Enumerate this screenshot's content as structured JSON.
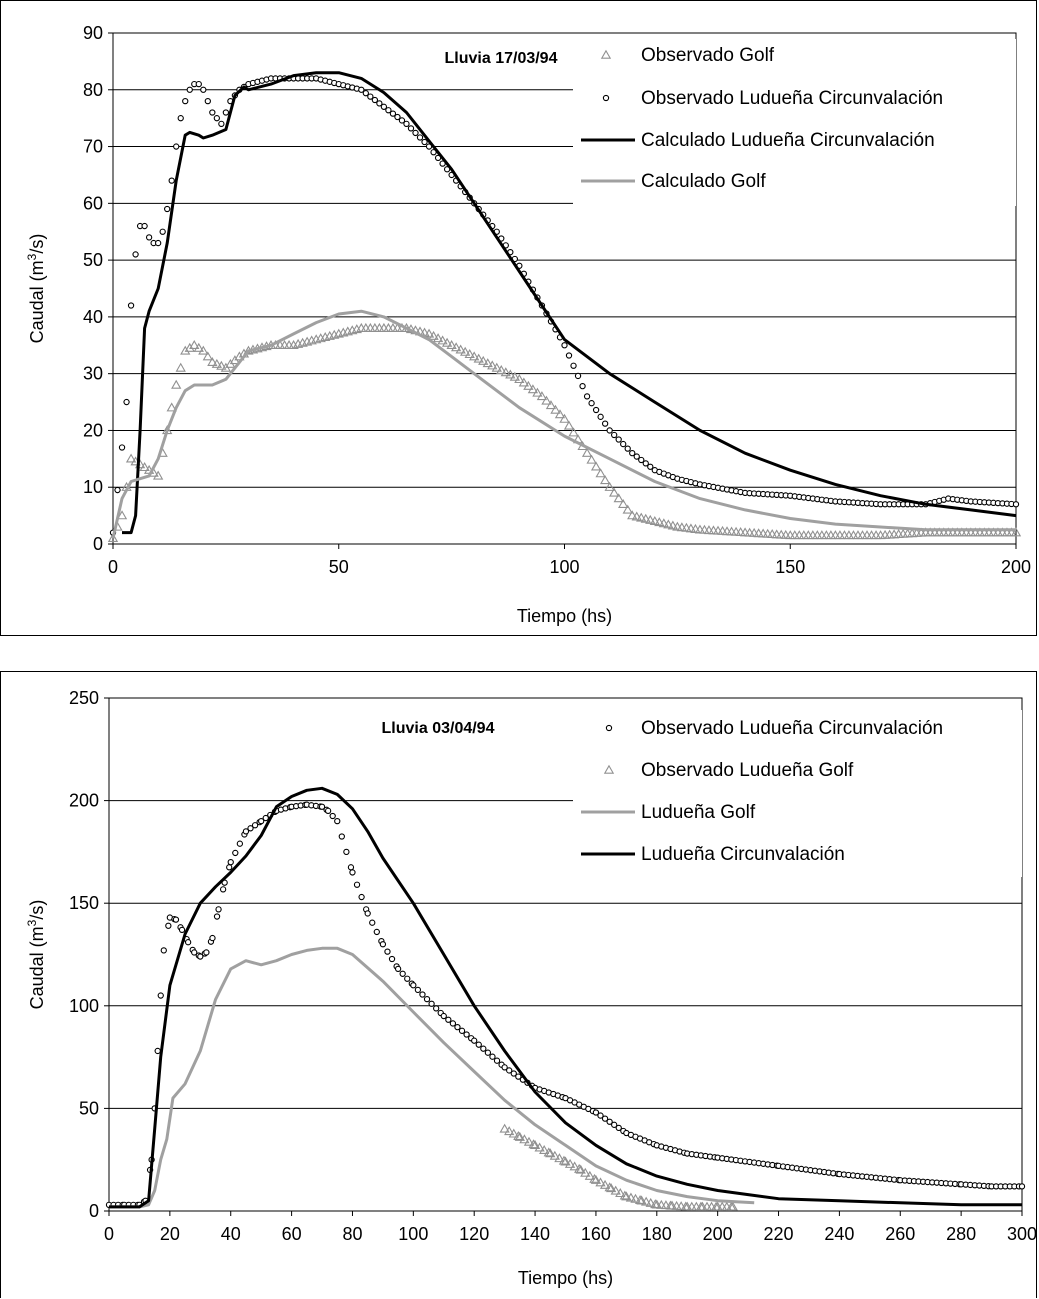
{
  "chart_data": [
    {
      "type": "line",
      "title": "Lluvia 17/03/94",
      "xlabel": "Tiempo (hs)",
      "ylabel_main": "Caudal (m",
      "ylabel_sup": "3",
      "ylabel_tail": "/s)",
      "xlim": [
        0,
        200
      ],
      "ylim": [
        0,
        90
      ],
      "xticks": [
        "0",
        "50",
        "100",
        "150",
        "200"
      ],
      "yticks": [
        "0",
        "10",
        "20",
        "30",
        "40",
        "50",
        "60",
        "70",
        "80",
        "90"
      ],
      "grid": "horizontal",
      "legend_position": "top-right",
      "series": [
        {
          "name": "Observado Golf",
          "style": "triangle-markers",
          "color": "#909090",
          "x": [
            0,
            2,
            4,
            6,
            8,
            10,
            12,
            14,
            16,
            18,
            20,
            22,
            25,
            28,
            30,
            35,
            40,
            45,
            50,
            55,
            60,
            65,
            70,
            75,
            80,
            85,
            90,
            95,
            100,
            105,
            110,
            112,
            115,
            120,
            125,
            130,
            140,
            150,
            160,
            170,
            180,
            190,
            200
          ],
          "y": [
            1,
            5,
            15,
            14,
            13,
            12,
            20,
            28,
            34,
            35,
            34,
            32,
            31,
            33,
            34,
            35,
            35,
            36,
            37,
            38,
            38,
            38,
            37,
            35,
            33,
            31,
            29,
            26,
            22,
            16,
            10,
            8,
            5,
            4,
            3,
            2.5,
            2,
            1.5,
            1.5,
            1.5,
            2,
            2,
            2
          ]
        },
        {
          "name": "Observado Ludueña Circunvalación",
          "style": "circle-markers",
          "color": "#000000",
          "x": [
            0,
            2,
            3,
            4,
            5,
            6,
            7,
            8,
            9,
            10,
            11,
            12,
            13,
            14,
            15,
            16,
            17,
            18,
            19,
            20,
            21,
            22,
            24,
            26,
            28,
            30,
            35,
            40,
            45,
            50,
            55,
            60,
            65,
            70,
            75,
            80,
            85,
            90,
            95,
            100,
            105,
            110,
            115,
            120,
            125,
            130,
            140,
            150,
            160,
            170,
            180,
            185,
            190,
            200
          ],
          "y": [
            2,
            17,
            25,
            42,
            51,
            56,
            56,
            54,
            53,
            53,
            55,
            59,
            64,
            70,
            75,
            78,
            80,
            81,
            81,
            80,
            78,
            76,
            74,
            78,
            80,
            81,
            82,
            82,
            82,
            81,
            80,
            77,
            74,
            70,
            65,
            60,
            55,
            49,
            42,
            35,
            26,
            20,
            16,
            13,
            11.5,
            10.5,
            9,
            8.5,
            7.5,
            7,
            7,
            8,
            7.5,
            7
          ]
        },
        {
          "name": "Calculado Ludueña Circunvalación",
          "style": "line",
          "color": "#000000",
          "x": [
            2,
            4,
            5,
            6,
            7,
            8,
            10,
            12,
            14,
            16,
            17,
            19,
            20,
            22,
            25,
            27,
            29,
            30,
            35,
            40,
            45,
            50,
            55,
            60,
            65,
            70,
            75,
            80,
            85,
            90,
            95,
            100,
            110,
            120,
            130,
            140,
            150,
            160,
            170,
            180,
            190,
            200
          ],
          "y": [
            2,
            2,
            5,
            20,
            38,
            41,
            45,
            53,
            64,
            72,
            72.5,
            72,
            71.5,
            72,
            73,
            79,
            80.5,
            80,
            81,
            82.5,
            83,
            83,
            82,
            79.5,
            76,
            71,
            66,
            60,
            54,
            48,
            42,
            36,
            30,
            25,
            20,
            16,
            13,
            10.5,
            8.5,
            7,
            6,
            5
          ]
        },
        {
          "name": "Calculado Golf",
          "style": "line",
          "color": "#a0a0a0",
          "x": [
            0,
            2,
            4,
            6,
            8,
            10,
            12,
            14,
            16,
            18,
            20,
            22,
            25,
            28,
            30,
            35,
            40,
            45,
            50,
            55,
            60,
            65,
            70,
            75,
            80,
            90,
            100,
            110,
            120,
            130,
            140,
            150,
            160,
            170,
            180,
            190,
            200
          ],
          "y": [
            1,
            8,
            11,
            11.5,
            12,
            15,
            20,
            24,
            27,
            28,
            28,
            28,
            29,
            32,
            34,
            35,
            37,
            39,
            40.5,
            41,
            40,
            38,
            36,
            33,
            30,
            24,
            19,
            15,
            11,
            8,
            6,
            4.5,
            3.5,
            3,
            2.5,
            2.5,
            2.5
          ]
        }
      ]
    },
    {
      "type": "line",
      "title": "Lluvia 03/04/94",
      "xlabel": "Tiempo (hs)",
      "ylabel_main": "Caudal (m",
      "ylabel_sup": "3",
      "ylabel_tail": "/s)",
      "xlim": [
        0,
        300
      ],
      "ylim": [
        0,
        250
      ],
      "xticks": [
        "0",
        "20",
        "40",
        "60",
        "80",
        "100",
        "120",
        "140",
        "160",
        "180",
        "200",
        "220",
        "240",
        "260",
        "280",
        "300"
      ],
      "yticks": [
        "0",
        "50",
        "100",
        "150",
        "200",
        "250"
      ],
      "grid": "horizontal",
      "legend_position": "top-right",
      "series": [
        {
          "name": "Observado Ludueña Circunvalación",
          "style": "circle-markers",
          "color": "#000000",
          "x": [
            0,
            5,
            10,
            12,
            14,
            15,
            16,
            17,
            18,
            20,
            22,
            24,
            26,
            28,
            30,
            32,
            34,
            36,
            38,
            40,
            45,
            50,
            55,
            60,
            65,
            70,
            72,
            75,
            78,
            80,
            85,
            90,
            95,
            100,
            110,
            120,
            130,
            140,
            150,
            160,
            170,
            180,
            190,
            200,
            220,
            240,
            260,
            280,
            290,
            300
          ],
          "y": [
            3,
            3,
            3,
            5,
            25,
            50,
            78,
            105,
            127,
            143,
            142,
            137,
            131,
            126,
            124,
            126,
            133,
            147,
            160,
            170,
            185,
            190,
            195,
            197,
            198,
            197,
            195,
            190,
            175,
            165,
            145,
            130,
            118,
            110,
            95,
            83,
            70,
            60,
            55,
            48,
            38,
            32,
            28,
            26,
            22,
            18,
            15,
            13,
            12,
            12
          ]
        },
        {
          "name": "Observado Ludueña Golf",
          "style": "triangle-markers",
          "color": "#909090",
          "x": [
            130,
            135,
            140,
            145,
            150,
            155,
            160,
            165,
            170,
            175,
            180,
            185,
            190,
            195,
            200,
            205
          ],
          "y": [
            40,
            36,
            32,
            28,
            24,
            20,
            15,
            11,
            7,
            5,
            3,
            2.5,
            2,
            2,
            2,
            2
          ]
        },
        {
          "name": "Ludueña Golf",
          "style": "line",
          "color": "#a0a0a0",
          "x": [
            0,
            10,
            13,
            15,
            17,
            19,
            21,
            25,
            30,
            35,
            40,
            45,
            50,
            55,
            60,
            65,
            70,
            75,
            80,
            90,
            100,
            110,
            120,
            130,
            140,
            150,
            160,
            170,
            180,
            190,
            200,
            212
          ],
          "y": [
            2,
            2,
            3,
            10,
            25,
            35,
            55,
            62,
            78,
            103,
            118,
            122,
            120,
            122,
            125,
            127,
            128,
            128,
            125,
            112,
            97,
            82,
            68,
            54,
            42,
            32,
            22,
            15,
            10,
            7,
            5,
            4
          ]
        },
        {
          "name": "Ludueña Circunvalación",
          "style": "line",
          "color": "#000000",
          "x": [
            0,
            10,
            13,
            15,
            17,
            20,
            25,
            30,
            35,
            40,
            45,
            50,
            55,
            60,
            65,
            70,
            75,
            80,
            85,
            90,
            100,
            110,
            120,
            130,
            140,
            150,
            160,
            170,
            180,
            190,
            200,
            210,
            220,
            240,
            260,
            280,
            300
          ],
          "y": [
            2,
            2,
            5,
            40,
            75,
            110,
            135,
            150,
            158,
            165,
            173,
            183,
            197,
            202,
            205,
            206,
            203,
            196,
            185,
            172,
            150,
            125,
            100,
            78,
            58,
            43,
            32,
            23,
            17,
            13,
            10,
            8,
            6,
            5,
            4,
            3,
            3
          ]
        }
      ]
    }
  ]
}
